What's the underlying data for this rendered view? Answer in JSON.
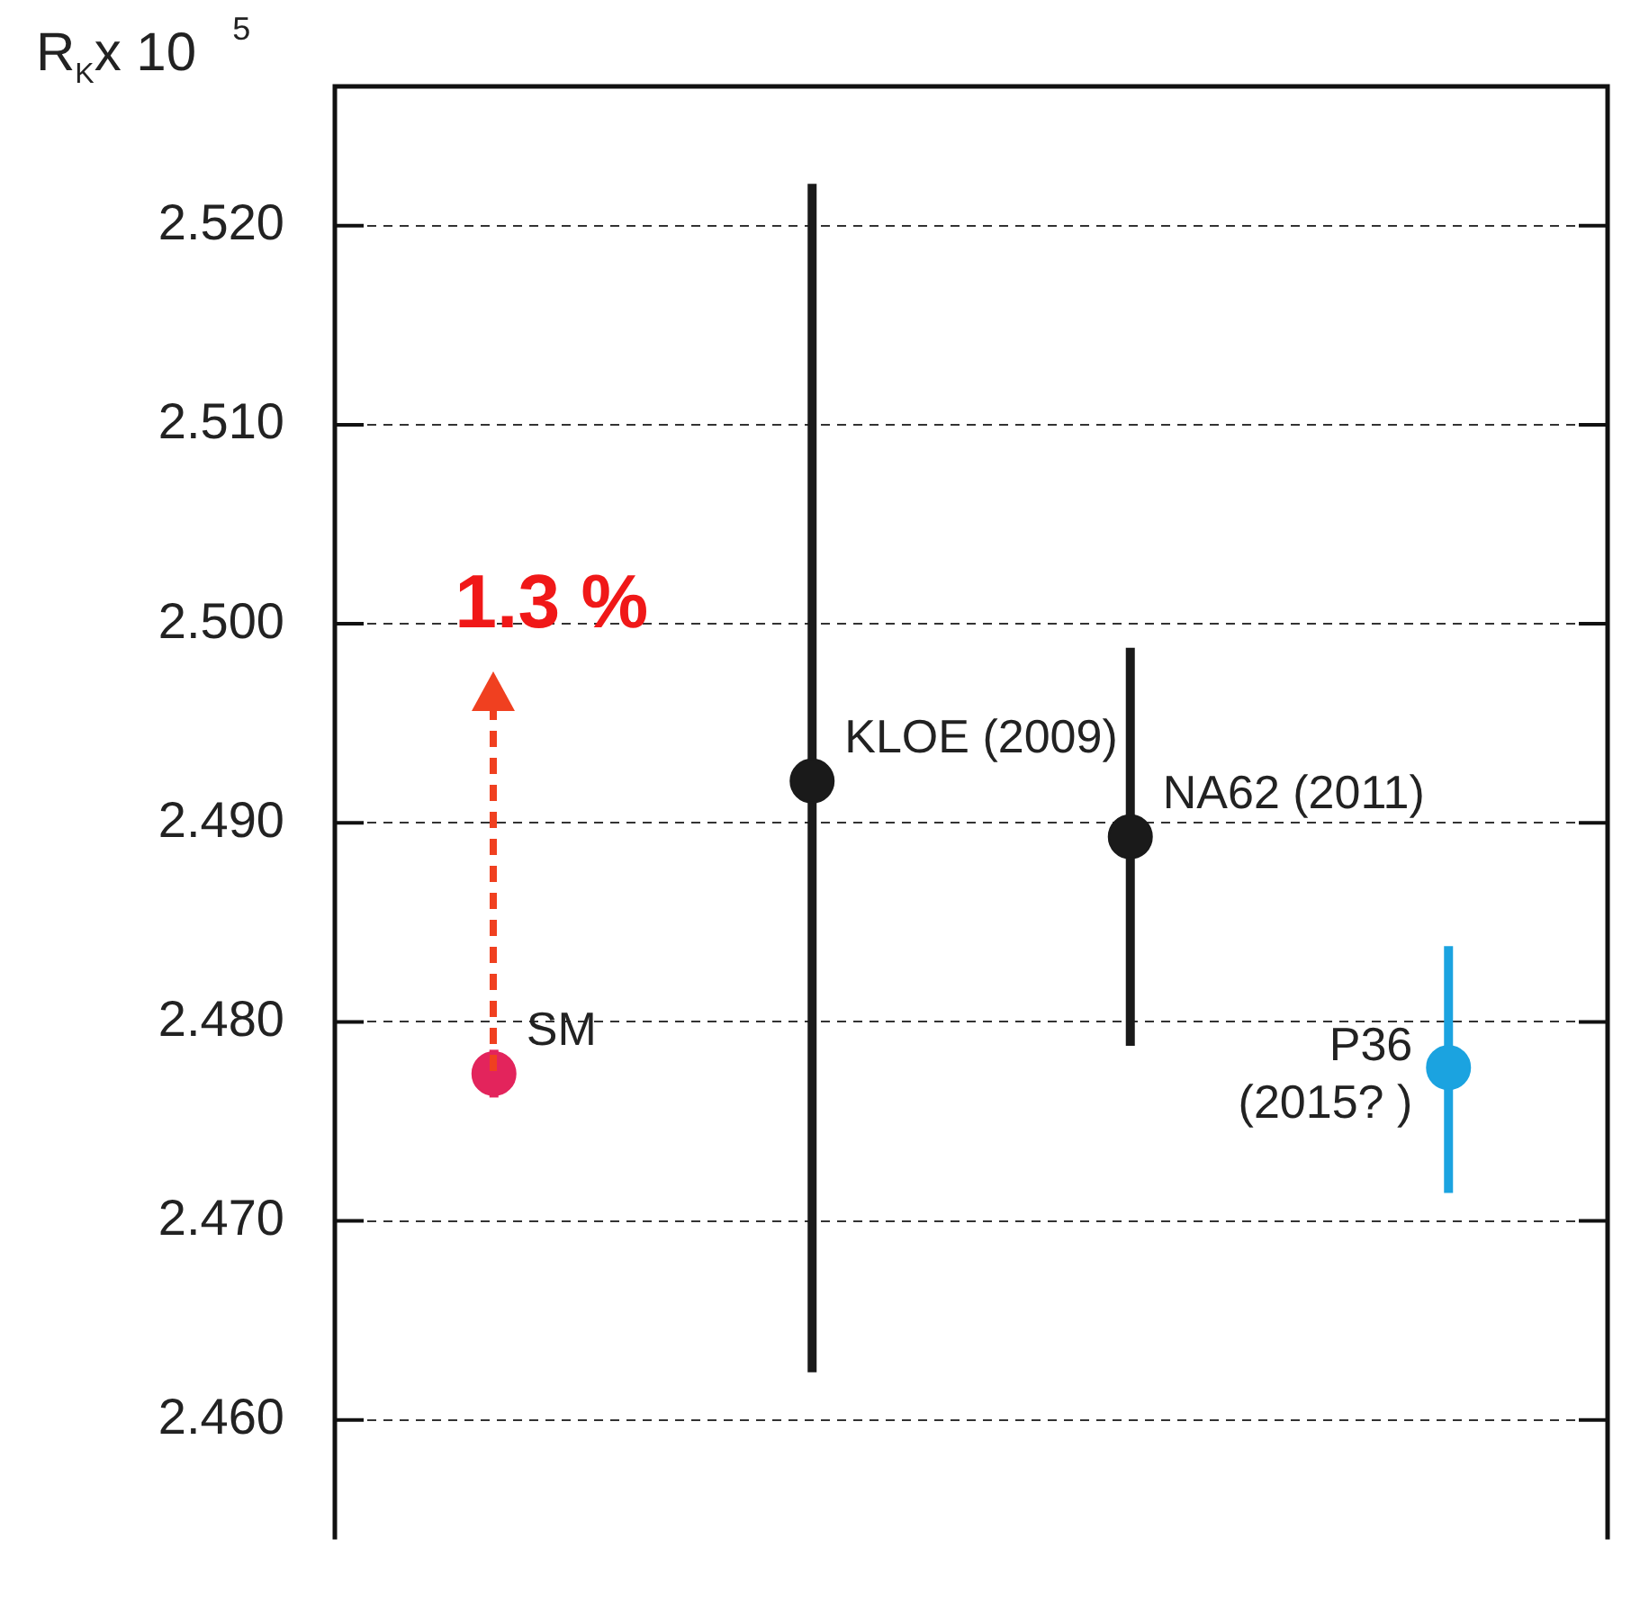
{
  "chart_data": {
    "type": "scatter",
    "ylabel": "R$_{K}$x 10$^{5}$",
    "categories": [
      null,
      null,
      null,
      null
    ],
    "series": [
      {
        "name": "SM",
        "color": "#e3245c",
        "values": [
          2.4774,
          null,
          null,
          null
        ],
        "errors": [
          0.0012,
          null,
          null,
          null
        ]
      },
      {
        "name": "KLOE (2009)",
        "color": "#1a1a1a",
        "values": [
          null,
          2.4921,
          null,
          null
        ],
        "errors": [
          null,
          [
            2.4624,
            2.5221
          ],
          null,
          null
        ]
      },
      {
        "name": "NA62 (2011)",
        "color": "#1a1a1a",
        "values": [
          null,
          null,
          2.4893,
          null
        ],
        "errors": [
          null,
          null,
          [
            2.4788,
            2.4988
          ],
          null
        ]
      },
      {
        "name": "P36 (2015? )",
        "color": "#1ba3e0",
        "values": [
          null,
          null,
          null,
          2.4777
        ],
        "errors": [
          null,
          null,
          null,
          [
            2.4714,
            2.4838
          ]
        ]
      }
    ],
    "ylim": [
      2.454,
      2.527
    ],
    "yticks": [
      {
        "value": 2.46,
        "label": "2.460"
      },
      {
        "value": 2.47,
        "label": "2.470"
      },
      {
        "value": 2.48,
        "label": "2.480"
      },
      {
        "value": 2.49,
        "label": "2.490"
      },
      {
        "value": 2.5,
        "label": "2.500"
      },
      {
        "value": 2.51,
        "label": "2.510"
      },
      {
        "value": 2.52,
        "label": "2.520"
      }
    ],
    "grid": "y",
    "marker": "circle",
    "annotations": [
      "1.3 %"
    ]
  }
}
